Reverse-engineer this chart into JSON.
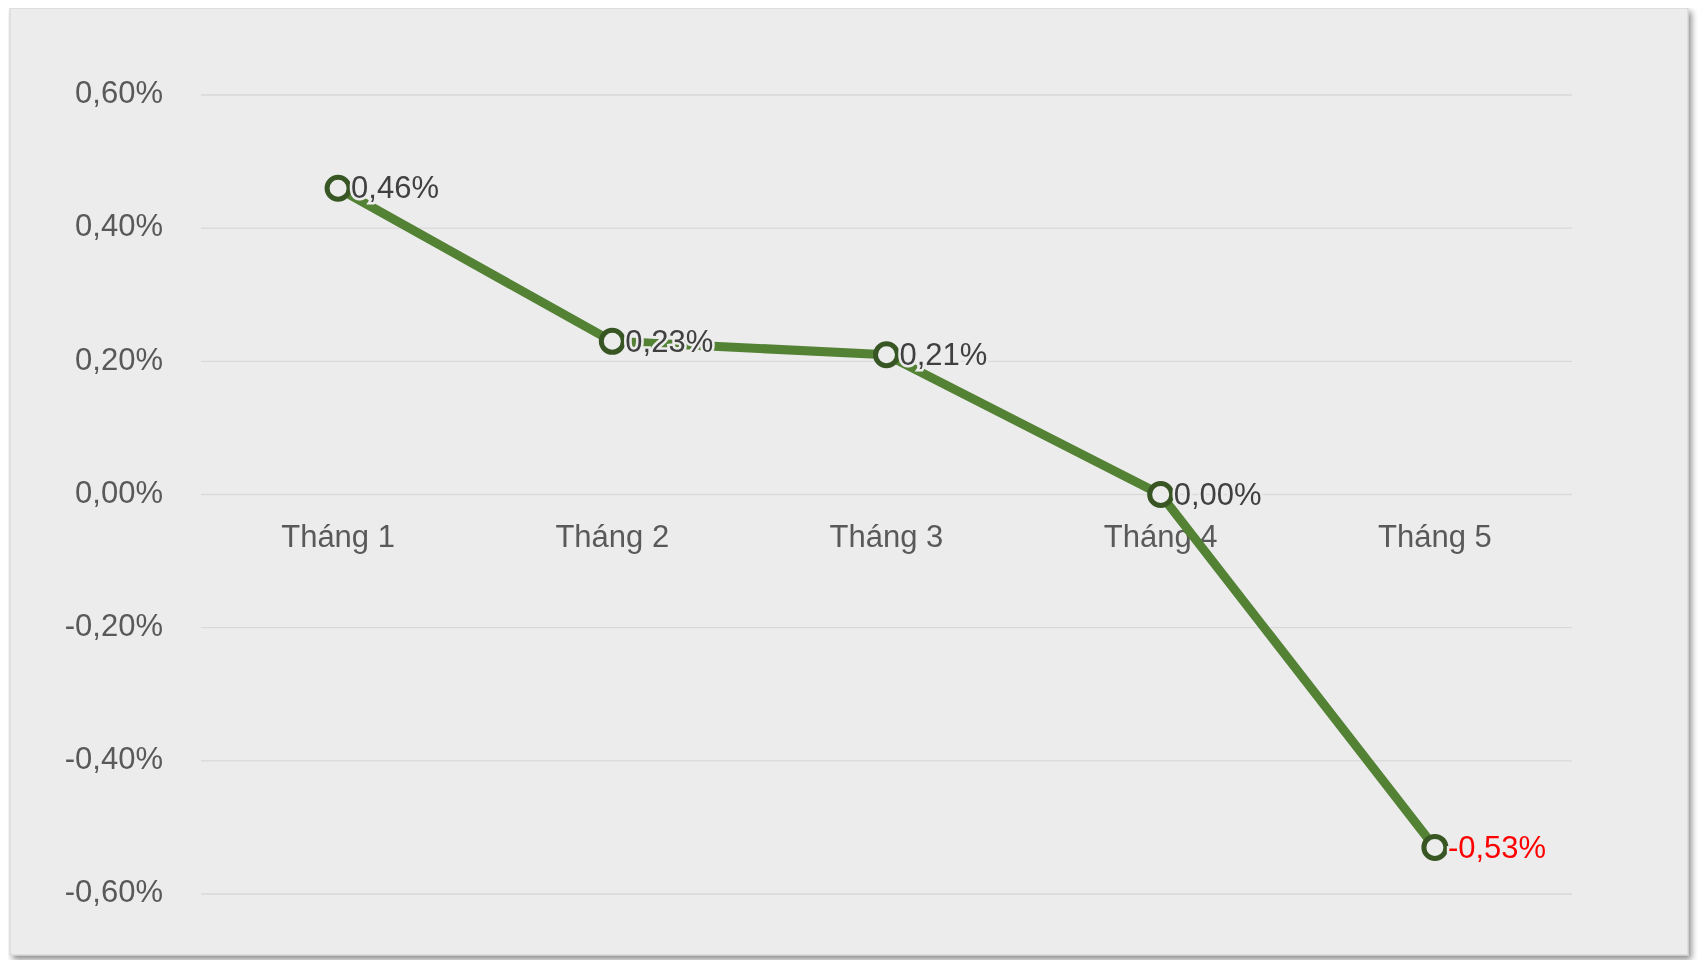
{
  "chart_data": {
    "type": "line",
    "categories": [
      "Tháng 1",
      "Tháng 2",
      "Tháng 3",
      "Tháng 4",
      "Tháng 5"
    ],
    "series": [
      {
        "color": "#548235",
        "values": [
          0.46,
          0.23,
          0.21,
          0.0,
          -0.53
        ],
        "value_labels": [
          "0,46%",
          "0,23%",
          "0,21%",
          "0,00%",
          "-0,53%"
        ]
      }
    ],
    "ylim": [
      -0.6,
      0.6
    ],
    "yticks": [
      {
        "value": 0.6,
        "label": "0,60%"
      },
      {
        "value": 0.4,
        "label": "0,40%"
      },
      {
        "value": 0.2,
        "label": "0,20%"
      },
      {
        "value": 0,
        "label": "0,00%"
      },
      {
        "value": -0.2,
        "label": "-0,20%"
      },
      {
        "value": -0.4,
        "label": "-0,40%"
      },
      {
        "value": -0.6,
        "label": "-0,60%"
      }
    ],
    "grid": "y",
    "marker": "circle",
    "line_style": "solid"
  }
}
